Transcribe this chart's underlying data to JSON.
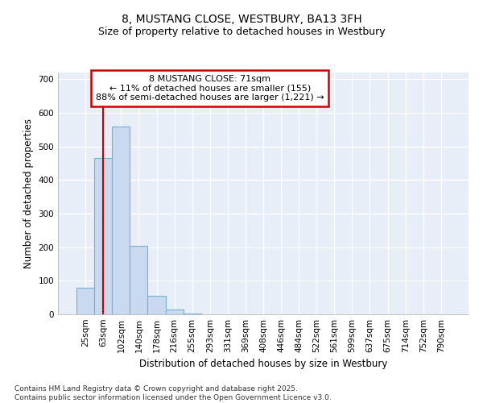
{
  "title_line1": "8, MUSTANG CLOSE, WESTBURY, BA13 3FH",
  "title_line2": "Size of property relative to detached houses in Westbury",
  "xlabel": "Distribution of detached houses by size in Westbury",
  "ylabel": "Number of detached properties",
  "categories": [
    "25sqm",
    "63sqm",
    "102sqm",
    "140sqm",
    "178sqm",
    "216sqm",
    "255sqm",
    "293sqm",
    "331sqm",
    "369sqm",
    "408sqm",
    "446sqm",
    "484sqm",
    "522sqm",
    "561sqm",
    "599sqm",
    "637sqm",
    "675sqm",
    "714sqm",
    "752sqm",
    "790sqm"
  ],
  "bar_values": [
    80,
    465,
    560,
    205,
    55,
    15,
    3,
    1,
    0,
    0,
    0,
    0,
    0,
    0,
    0,
    0,
    0,
    0,
    0,
    0,
    0
  ],
  "bar_color": "#c8d9f0",
  "bar_edge_color": "#7aafd4",
  "bar_linewidth": 0.8,
  "red_line_x": 1.0,
  "annotation_text": "8 MUSTANG CLOSE: 71sqm\n← 11% of detached houses are smaller (155)\n88% of semi-detached houses are larger (1,221) →",
  "annotation_box_color": "white",
  "annotation_edge_color": "#cc0000",
  "ylim": [
    0,
    720
  ],
  "yticks": [
    0,
    100,
    200,
    300,
    400,
    500,
    600,
    700
  ],
  "bg_color": "#e8eef8",
  "grid_color": "white",
  "footer_line1": "Contains HM Land Registry data © Crown copyright and database right 2025.",
  "footer_line2": "Contains public sector information licensed under the Open Government Licence v3.0.",
  "title_fontsize": 10,
  "subtitle_fontsize": 9,
  "axis_label_fontsize": 8.5,
  "tick_fontsize": 7.5,
  "annot_fontsize": 8,
  "footer_fontsize": 6.5
}
